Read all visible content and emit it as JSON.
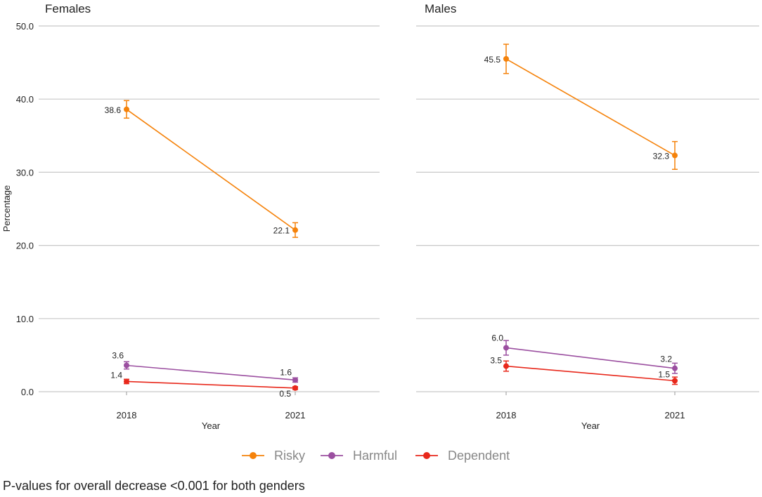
{
  "chart_data": {
    "type": "line",
    "ylabel": "Percentage",
    "xlabel": "Year",
    "ylim": [
      0,
      50
    ],
    "yticks": [
      "0.0",
      "10.0",
      "20.0",
      "30.0",
      "40.0",
      "50.0"
    ],
    "ytick_values": [
      0,
      10,
      20,
      30,
      40,
      50
    ],
    "x": [
      "2018",
      "2021"
    ],
    "colors": {
      "Risky": "#f5820a",
      "Harmful": "#9b4fa0",
      "Dependent": "#e8281b"
    },
    "legend": [
      "Risky",
      "Harmful",
      "Dependent"
    ],
    "legend_position": "bottom",
    "panels": [
      {
        "title": "Females",
        "series": [
          {
            "name": "Risky",
            "values": [
              38.6,
              22.1
            ],
            "labels": [
              "38.6",
              "22.1"
            ],
            "lower": [
              37.4,
              21.1
            ],
            "upper": [
              39.8,
              23.1
            ]
          },
          {
            "name": "Harmful",
            "values": [
              3.6,
              1.6
            ],
            "labels": [
              "3.6",
              "1.6"
            ],
            "lower": [
              3.1,
              1.3
            ],
            "upper": [
              4.1,
              1.9
            ]
          },
          {
            "name": "Dependent",
            "values": [
              1.4,
              0.5
            ],
            "labels": [
              "1.4",
              "0.5"
            ],
            "lower": [
              1.1,
              0.3
            ],
            "upper": [
              1.7,
              0.7
            ]
          }
        ]
      },
      {
        "title": "Males",
        "series": [
          {
            "name": "Risky",
            "values": [
              45.5,
              32.3
            ],
            "labels": [
              "45.5",
              "32.3"
            ],
            "lower": [
              43.5,
              30.4
            ],
            "upper": [
              47.5,
              34.2
            ]
          },
          {
            "name": "Harmful",
            "values": [
              6.0,
              3.2
            ],
            "labels": [
              "6.0",
              "3.2"
            ],
            "lower": [
              5.0,
              2.5
            ],
            "upper": [
              7.0,
              3.9
            ]
          },
          {
            "name": "Dependent",
            "values": [
              3.5,
              1.5
            ],
            "labels": [
              "3.5",
              "1.5"
            ],
            "lower": [
              2.8,
              1.0
            ],
            "upper": [
              4.2,
              2.0
            ]
          }
        ]
      }
    ]
  },
  "footnote": "P-values for overall decrease <0.001 for both genders"
}
